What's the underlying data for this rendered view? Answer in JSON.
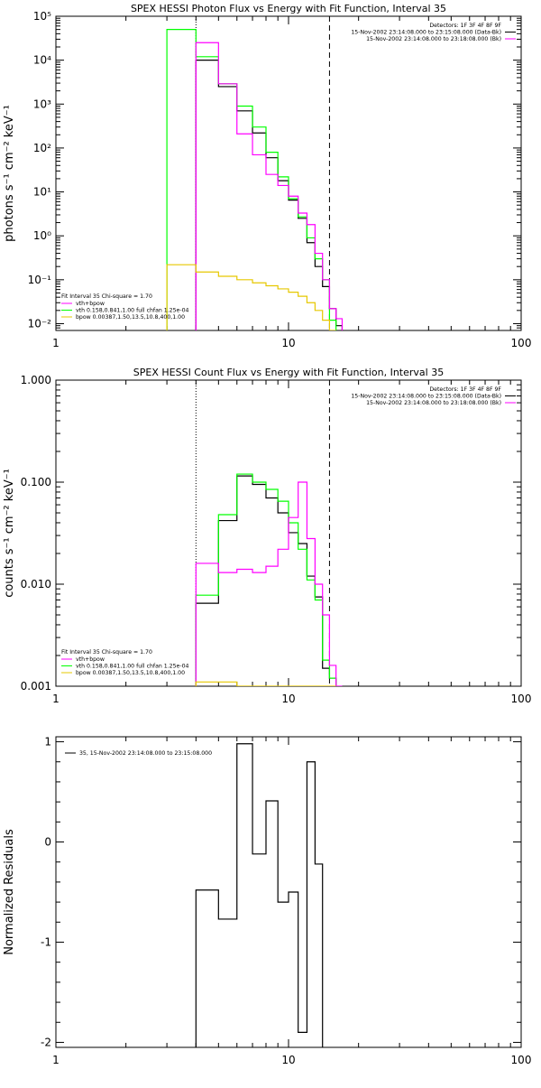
{
  "colors": {
    "data": "#000000",
    "model": "#00ff00",
    "vth": "#ff00ff",
    "bpow": "#e6c800",
    "residual": "#000000"
  },
  "chart_data": [
    {
      "type": "line",
      "title": "SPEX HESSI Photon Flux vs Energy with Fit Function, Interval 35",
      "xlabel": "",
      "ylabel": "photons s⁻¹ cm⁻² keV⁻¹",
      "xscale": "log",
      "yscale": "log",
      "xlim": [
        1,
        100
      ],
      "ylim": [
        0.007,
        100000
      ],
      "x_tick_labels": [
        "1",
        "10",
        "100"
      ],
      "y_tick_labels": [
        "10⁻²",
        "10⁻¹",
        "10⁰",
        "10¹",
        "10²",
        "10³",
        "10⁴",
        "10⁵"
      ],
      "y_tick_values": [
        0.01,
        0.1,
        1,
        10,
        100,
        1000,
        10000,
        100000
      ],
      "lines": [
        {
          "style": "dotted",
          "x": 4.0
        },
        {
          "style": "dashed",
          "x": 15.0
        }
      ],
      "legend_top": [
        "Detectors: 1F 3F 4F 8F 9F",
        "15-Nov-2002 23:14:08.000 to 23:15:08.000 (Data-Bk)",
        "15-Nov-2002 23:14:08.000 to 23:18:08.000 (Bk)"
      ],
      "legend_bottom_header": "Fit Interval 35   Chi-square = 1.70",
      "legend_bottom": [
        "vth+bpow",
        "vth 0.158,0.841,1.00  full chfan 1.25e-04",
        "bpow 0.00387,1.50,13.5,10.8,400,1.00"
      ],
      "bin_edges": [
        3.0,
        4.0,
        5.0,
        6.0,
        7.0,
        8.0,
        9.0,
        10.0,
        11.0,
        12.0,
        13.0,
        14.0,
        15.0,
        16.0,
        17.0
      ],
      "series": [
        {
          "key": "data",
          "values": [
            null,
            10000,
            2500,
            700,
            220,
            60,
            18,
            6.5,
            2.5,
            0.7,
            0.2,
            0.07,
            0.022,
            0.009
          ]
        },
        {
          "key": "model",
          "values": [
            50000,
            12000,
            2900,
            900,
            300,
            80,
            22,
            7.0,
            2.7,
            0.9,
            0.3,
            0.1,
            0.012,
            null
          ]
        },
        {
          "key": "vth",
          "values": [
            null,
            25000,
            2900,
            210,
            70,
            25,
            14,
            8.0,
            3.3,
            1.8,
            0.4,
            0.1,
            0.022,
            0.013
          ]
        },
        {
          "key": "bpow",
          "values": [
            0.22,
            0.15,
            0.12,
            0.1,
            0.085,
            0.073,
            0.062,
            0.052,
            0.042,
            0.03,
            0.02,
            0.012,
            0.007,
            null
          ]
        }
      ]
    },
    {
      "type": "line",
      "title": "SPEX HESSI Count Flux vs Energy with Fit Function, Interval 35",
      "xlabel": "",
      "ylabel": "counts s⁻¹ cm⁻² keV⁻¹",
      "xscale": "log",
      "yscale": "log",
      "xlim": [
        1,
        100
      ],
      "ylim": [
        0.001,
        1.0
      ],
      "x_tick_labels": [
        "1",
        "10",
        "100"
      ],
      "y_tick_labels": [
        "0.001",
        "0.010",
        "0.100",
        "1.000"
      ],
      "y_tick_values": [
        0.001,
        0.01,
        0.1,
        1.0
      ],
      "lines": [
        {
          "style": "dotted",
          "x": 4.0
        },
        {
          "style": "dashed",
          "x": 15.0
        }
      ],
      "legend_top": [
        "Detectors: 1F 3F 4F 8F 9F",
        "15-Nov-2002 23:14:08.000 to 23:15:08.000 (Data-Bk)",
        "15-Nov-2002 23:14:08.000 to 23:18:08.000 (Bk)"
      ],
      "legend_bottom_header": "Fit Interval 35   Chi-square = 1.70",
      "legend_bottom": [
        "vth+bpow",
        "vth 0.158,0.841,1.00  full chfan 1.25e-04",
        "bpow 0.00387,1.50,13.5,10.8,400,1.00"
      ],
      "bin_edges": [
        4.0,
        5.0,
        6.0,
        7.0,
        8.0,
        9.0,
        10.0,
        11.0,
        12.0,
        13.0,
        14.0,
        15.0,
        16.0,
        17.0
      ],
      "series": [
        {
          "key": "data",
          "values": [
            0.0065,
            0.042,
            0.115,
            0.095,
            0.07,
            0.05,
            0.032,
            0.025,
            0.012,
            0.0075,
            0.0015,
            0.0012,
            null
          ]
        },
        {
          "key": "model",
          "values": [
            0.0078,
            0.048,
            0.12,
            0.1,
            0.085,
            0.065,
            0.04,
            0.022,
            0.011,
            0.007,
            0.0018,
            0.0012,
            null
          ]
        },
        {
          "key": "vth",
          "values": [
            0.016,
            0.013,
            0.014,
            0.013,
            0.015,
            0.022,
            0.045,
            0.1,
            0.028,
            0.01,
            0.005,
            0.0016,
            0.001
          ]
        },
        {
          "key": "bpow",
          "values": [
            0.0011,
            0.0011,
            0.001,
            0.001,
            0.001,
            0.001,
            0.001,
            0.001,
            0.001,
            0.001,
            0.001,
            0.001,
            null
          ]
        }
      ]
    },
    {
      "type": "line",
      "title": "",
      "xlabel": "",
      "ylabel": "Normalized Residuals",
      "xscale": "log",
      "yscale": "linear",
      "xlim": [
        1,
        100
      ],
      "ylim": [
        -2.05,
        1.05
      ],
      "x_tick_labels": [
        "1",
        "10",
        "100"
      ],
      "y_tick_labels": [
        "-2",
        "-1",
        "0",
        "1"
      ],
      "y_tick_values": [
        -2,
        -1,
        0,
        1
      ],
      "lines": [],
      "legend_top": [
        "35, 15-Nov-2002 23:14:08.000 to 23:15:08.000"
      ],
      "legend_bottom_header": "",
      "legend_bottom": [],
      "bin_edges": [
        4.0,
        5.0,
        6.0,
        7.0,
        8.0,
        9.0,
        10.0,
        11.0,
        12.0,
        13.0,
        14.0,
        15.0
      ],
      "series": [
        {
          "key": "residual",
          "values": [
            -0.48,
            -0.77,
            0.98,
            -0.12,
            0.41,
            -0.6,
            -0.5,
            -1.9,
            0.8,
            -0.22,
            null
          ]
        }
      ]
    }
  ]
}
